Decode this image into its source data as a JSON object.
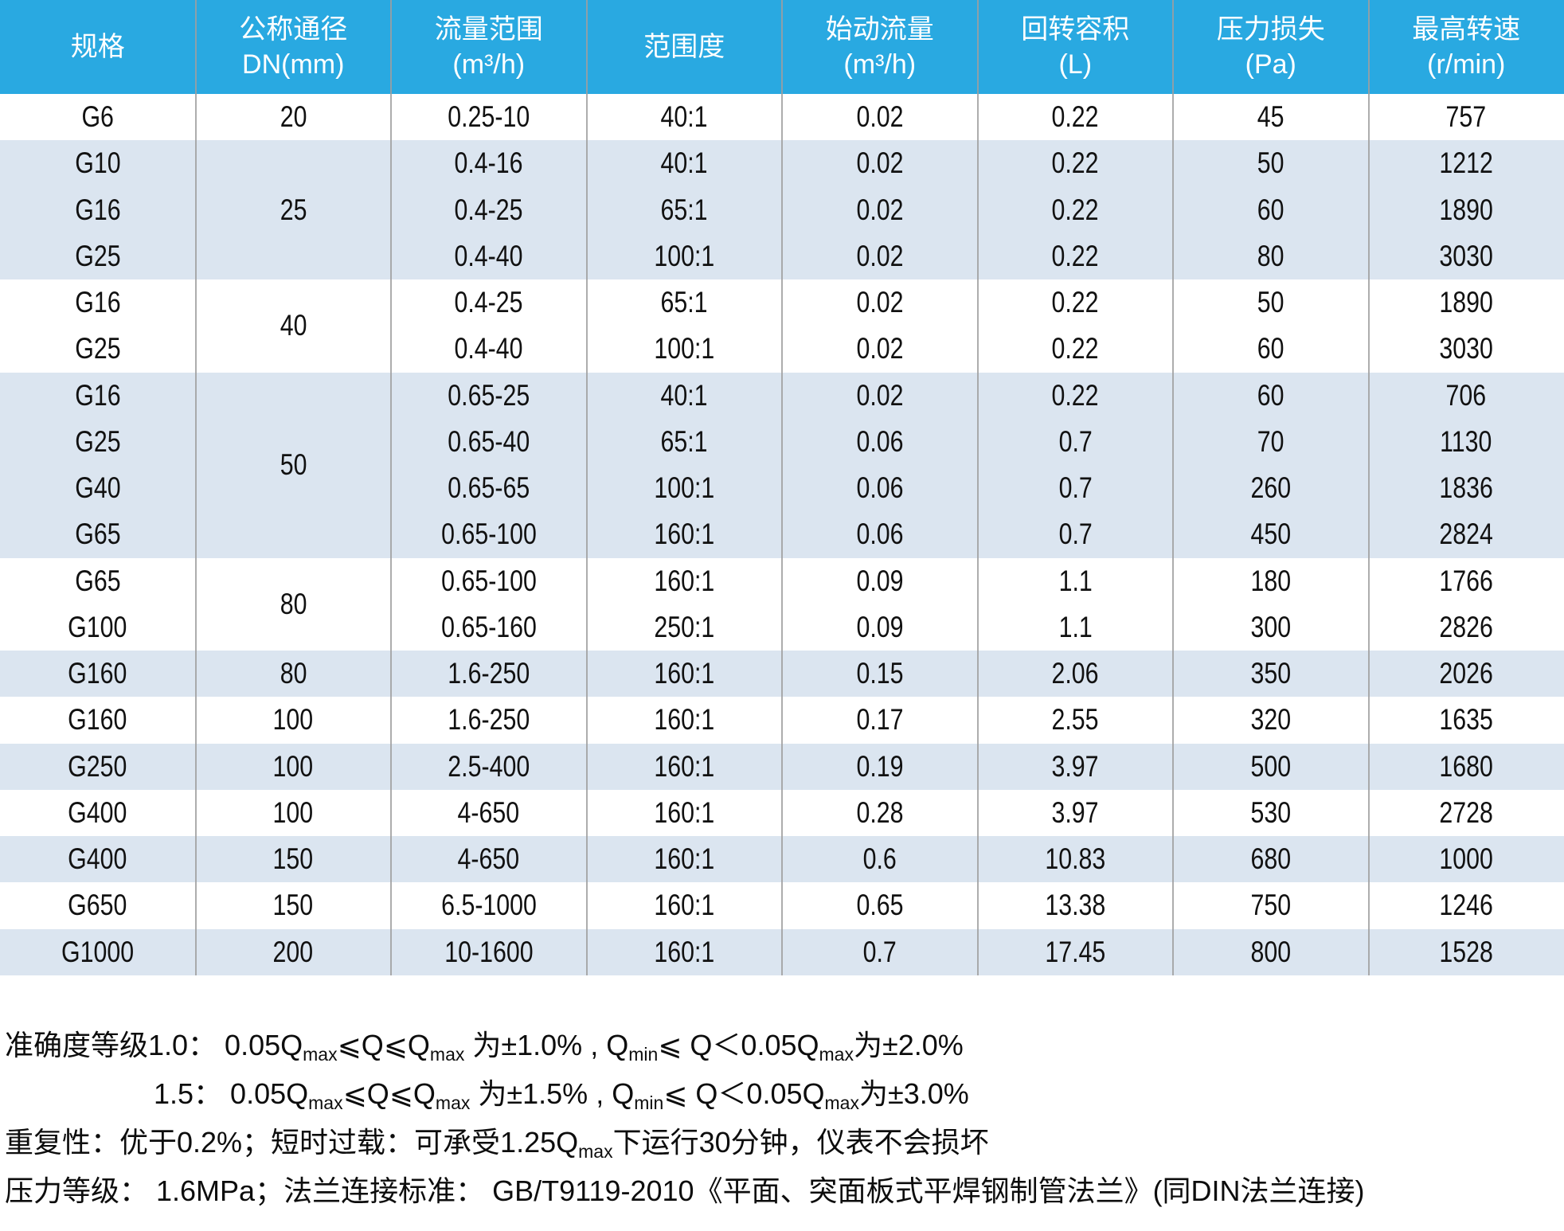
{
  "colors": {
    "header_bg": "#29a9e1",
    "band_blue": "#dbe5f0",
    "band_white": "#ffffff",
    "divider": "#9f9f9f",
    "body_text": "#111111",
    "header_text": "#ffffff"
  },
  "table": {
    "headers": [
      {
        "label": "规格",
        "unit": ""
      },
      {
        "label": "公称通径",
        "unit": "DN(mm)"
      },
      {
        "label": "流量范围",
        "unit": "(m³/h)"
      },
      {
        "label": "范围度",
        "unit": ""
      },
      {
        "label": "始动流量",
        "unit": "(m³/h)"
      },
      {
        "label": "回转容积",
        "unit": "(L)"
      },
      {
        "label": "压力损失",
        "unit": "(Pa)"
      },
      {
        "label": "最高转速",
        "unit": "(r/min)"
      }
    ],
    "groups": [
      {
        "dn": "20",
        "band": "white",
        "rows": [
          [
            "G6",
            "0.25-10",
            "40:1",
            "0.02",
            "0.22",
            "45",
            "757"
          ]
        ]
      },
      {
        "dn": "25",
        "band": "blue",
        "rows": [
          [
            "G10",
            "0.4-16",
            "40:1",
            "0.02",
            "0.22",
            "50",
            "1212"
          ],
          [
            "G16",
            "0.4-25",
            "65:1",
            "0.02",
            "0.22",
            "60",
            "1890"
          ],
          [
            "G25",
            "0.4-40",
            "100:1",
            "0.02",
            "0.22",
            "80",
            "3030"
          ]
        ]
      },
      {
        "dn": "40",
        "band": "white",
        "rows": [
          [
            "G16",
            "0.4-25",
            "65:1",
            "0.02",
            "0.22",
            "50",
            "1890"
          ],
          [
            "G25",
            "0.4-40",
            "100:1",
            "0.02",
            "0.22",
            "60",
            "3030"
          ]
        ]
      },
      {
        "dn": "50",
        "band": "blue",
        "rows": [
          [
            "G16",
            "0.65-25",
            "40:1",
            "0.02",
            "0.22",
            "60",
            "706"
          ],
          [
            "G25",
            "0.65-40",
            "65:1",
            "0.06",
            "0.7",
            "70",
            "1130"
          ],
          [
            "G40",
            "0.65-65",
            "100:1",
            "0.06",
            "0.7",
            "260",
            "1836"
          ],
          [
            "G65",
            "0.65-100",
            "160:1",
            "0.06",
            "0.7",
            "450",
            "2824"
          ]
        ]
      },
      {
        "dn": "80",
        "band": "white",
        "rows": [
          [
            "G65",
            "0.65-100",
            "160:1",
            "0.09",
            "1.1",
            "180",
            "1766"
          ],
          [
            "G100",
            "0.65-160",
            "250:1",
            "0.09",
            "1.1",
            "300",
            "2826"
          ]
        ]
      },
      {
        "dn": "80",
        "band": "blue",
        "rows": [
          [
            "G160",
            "1.6-250",
            "160:1",
            "0.15",
            "2.06",
            "350",
            "2026"
          ]
        ]
      },
      {
        "dn": "100",
        "band": "white",
        "rows": [
          [
            "G160",
            "1.6-250",
            "160:1",
            "0.17",
            "2.55",
            "320",
            "1635"
          ]
        ]
      },
      {
        "dn": "100",
        "band": "blue",
        "rows": [
          [
            "G250",
            "2.5-400",
            "160:1",
            "0.19",
            "3.97",
            "500",
            "1680"
          ]
        ]
      },
      {
        "dn": "100",
        "band": "white",
        "rows": [
          [
            "G400",
            "4-650",
            "160:1",
            "0.28",
            "3.97",
            "530",
            "2728"
          ]
        ]
      },
      {
        "dn": "150",
        "band": "blue",
        "rows": [
          [
            "G400",
            "4-650",
            "160:1",
            "0.6",
            "10.83",
            "680",
            "1000"
          ]
        ]
      },
      {
        "dn": "150",
        "band": "white",
        "rows": [
          [
            "G650",
            "6.5-1000",
            "160:1",
            "0.65",
            "13.38",
            "750",
            "1246"
          ]
        ]
      },
      {
        "dn": "200",
        "band": "blue",
        "rows": [
          [
            "G1000",
            "10-1600",
            "160:1",
            "0.7",
            "17.45",
            "800",
            "1528"
          ]
        ]
      }
    ]
  },
  "notes": {
    "lines": [
      {
        "indent": 0,
        "segments": [
          {
            "t": "准确度等级1.0： 0.05Q"
          },
          {
            "t": "max",
            "sub": true
          },
          {
            "t": "⩽Q⩽Q"
          },
          {
            "t": "max",
            "sub": true
          },
          {
            "t": " 为±1.0% , Q"
          },
          {
            "t": "min",
            "sub": true
          },
          {
            "t": "⩽ Q＜0.05Q"
          },
          {
            "t": "max",
            "sub": true
          },
          {
            "t": "为±2.0%"
          }
        ]
      },
      {
        "indent": 187,
        "segments": [
          {
            "t": "1.5： 0.05Q"
          },
          {
            "t": "max",
            "sub": true
          },
          {
            "t": "⩽Q⩽Q"
          },
          {
            "t": "max",
            "sub": true
          },
          {
            "t": " 为±1.5% , Q"
          },
          {
            "t": "min",
            "sub": true
          },
          {
            "t": "⩽ Q＜0.05Q"
          },
          {
            "t": "max",
            "sub": true
          },
          {
            "t": "为±3.0%"
          }
        ]
      },
      {
        "indent": 0,
        "segments": [
          {
            "t": "重复性：优于0.2%；短时过载：可承受1.25Q"
          },
          {
            "t": "max",
            "sub": true
          },
          {
            "t": "下运行30分钟，仪表不会损坏"
          }
        ]
      },
      {
        "indent": 0,
        "segments": [
          {
            "t": "压力等级： 1.6MPa；法兰连接标准： GB/T9119-2010《平面、突面板式平焊钢制管法兰》(同DIN法兰连接)"
          }
        ]
      }
    ]
  }
}
